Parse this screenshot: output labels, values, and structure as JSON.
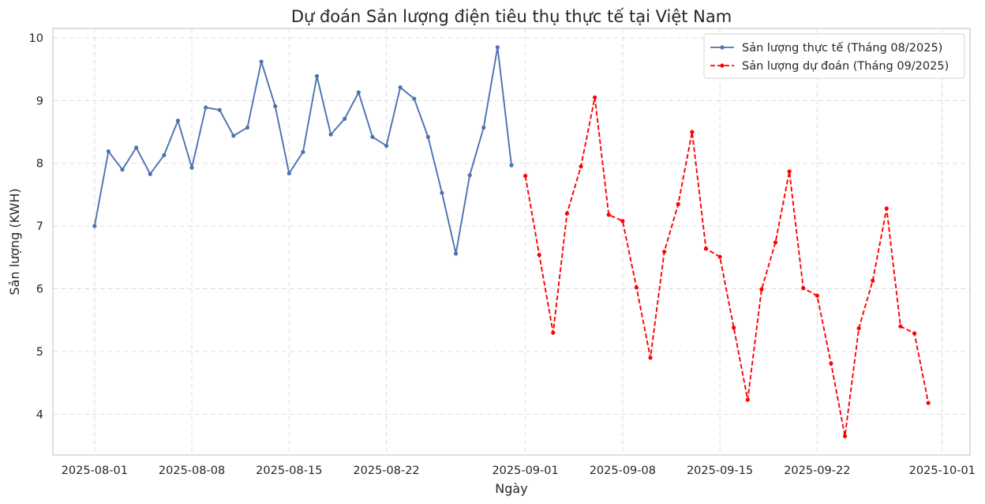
{
  "chart_data": {
    "type": "line",
    "title": "Dự đoán Sản lượng điện tiêu thụ thực tế tại Việt Nam",
    "xlabel": "Ngày",
    "ylabel": "Sản lượng (KWH)",
    "xlim": [
      "2025-07-29",
      "2025-10-03"
    ],
    "ylim": [
      3.35,
      10.15
    ],
    "x_ticks": [
      "2025-08-01",
      "2025-08-08",
      "2025-08-15",
      "2025-08-22",
      "2025-09-01",
      "2025-09-08",
      "2025-09-15",
      "2025-09-22",
      "2025-10-01"
    ],
    "y_ticks": [
      4,
      5,
      6,
      7,
      8,
      9,
      10
    ],
    "grid": true,
    "legend_position": "top-right",
    "series": [
      {
        "name": "Sản lượng thực tế (Tháng 08/2025)",
        "color": "#4c72b0",
        "style": "solid",
        "start_date": "2025-08-01",
        "values": [
          7.0,
          8.19,
          7.9,
          8.25,
          7.83,
          8.13,
          8.68,
          7.93,
          8.89,
          8.85,
          8.44,
          8.57,
          9.62,
          8.91,
          7.84,
          8.18,
          9.39,
          8.46,
          8.71,
          9.13,
          8.42,
          8.28,
          9.21,
          9.03,
          8.42,
          7.53,
          6.56,
          7.81,
          8.57,
          9.85,
          7.97
        ]
      },
      {
        "name": "Sản lượng dự đoán (Tháng 09/2025)",
        "color": "#ff0000",
        "style": "dashed",
        "start_date": "2025-09-01",
        "values": [
          7.8,
          6.54,
          5.3,
          7.2,
          7.95,
          9.05,
          7.18,
          7.08,
          6.02,
          4.9,
          6.59,
          7.35,
          8.5,
          6.64,
          6.51,
          5.38,
          4.23,
          5.99,
          6.74,
          7.87,
          6.01,
          5.89,
          4.81,
          3.65,
          5.37,
          6.13,
          7.28,
          5.4,
          5.29,
          4.18
        ]
      }
    ]
  }
}
